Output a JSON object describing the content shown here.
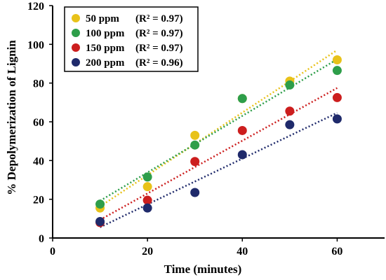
{
  "chart_data": {
    "type": "scatter",
    "xlabel": "Time (minutes)",
    "ylabel": "% Depolymerization of Lignin",
    "xlim": [
      0,
      70
    ],
    "ylim": [
      0,
      120
    ],
    "xticks": [
      "0",
      "20",
      "40",
      "60"
    ],
    "yticks": [
      "0",
      "20",
      "40",
      "60",
      "80",
      "100",
      "120"
    ],
    "x": [
      10,
      20,
      30,
      40,
      50,
      60
    ],
    "grid": false,
    "legend_position": "top-left",
    "trendline_style": "dotted linear fit",
    "series": [
      {
        "name": "50 ppm",
        "r2_label": "(R² = 0.97)",
        "color": "#e8c21a",
        "values": [
          15.5,
          26.5,
          53,
          72,
          81,
          92
        ]
      },
      {
        "name": "100 ppm",
        "r2_label": "(R² = 0.97)",
        "color": "#2e9e4a",
        "values": [
          17.5,
          31.5,
          48,
          72,
          79,
          86.5
        ]
      },
      {
        "name": "150 ppm",
        "r2_label": "(R² = 0.97)",
        "color": "#cc1e1e",
        "values": [
          8,
          19.5,
          39.5,
          55.5,
          65.5,
          72.5
        ]
      },
      {
        "name": "200 ppm",
        "r2_label": "(R² = 0.96)",
        "color": "#1f2a6b",
        "values": [
          8.5,
          15.5,
          23.5,
          43,
          58.5,
          61.5
        ]
      }
    ]
  }
}
